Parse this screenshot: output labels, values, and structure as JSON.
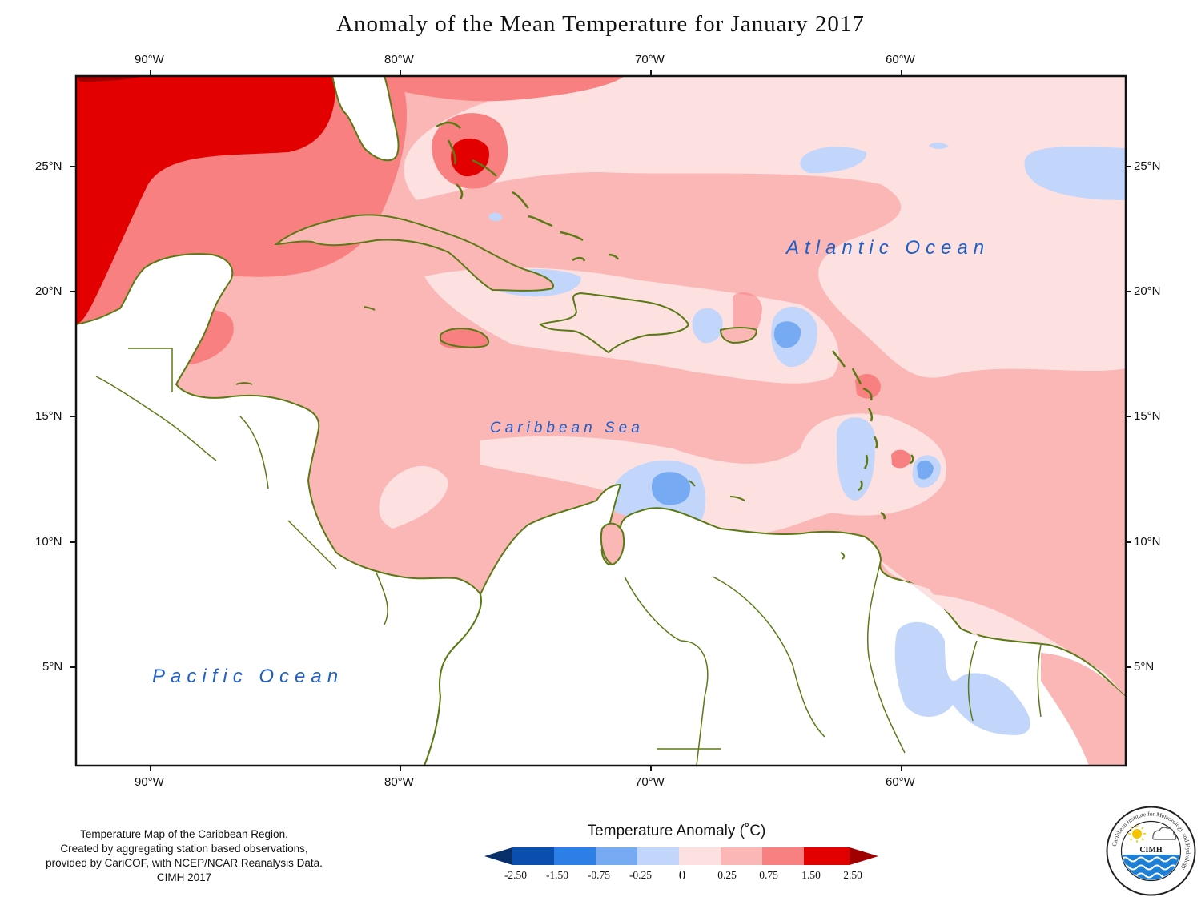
{
  "title": "Anomaly of the Mean Temperature for January 2017",
  "axes": {
    "top_lon": [
      "90°W",
      "80°W",
      "70°W",
      "60°W"
    ],
    "bottom_lon": [
      "90°W",
      "80°W",
      "70°W",
      "60°W"
    ],
    "left_lat": [
      "25°N",
      "20°N",
      "15°N",
      "10°N",
      "5°N"
    ],
    "right_lat": [
      "25°N",
      "20°N",
      "15°N",
      "10°N",
      "5°N"
    ]
  },
  "labels": {
    "atlantic": "Atlantic Ocean",
    "caribbean": "Caribbean Sea",
    "pacific": "Pacific Ocean"
  },
  "credit": {
    "line1": "Temperature Map of the Caribbean Region.",
    "line2": "Created by aggregating station based observations,",
    "line3": "provided by CariCOF, with NCEP/NCAR Reanalysis Data.",
    "line4": "CIMH 2017"
  },
  "legend": {
    "title": "Temperature Anomaly (˚C)",
    "ticks": [
      "-2.50",
      "-1.50",
      "-0.75",
      "-0.25",
      "0",
      "0.25",
      "0.75",
      "1.50",
      "2.50"
    ],
    "colors": [
      "#08306b",
      "#0a4fb0",
      "#2b7fe6",
      "#76aaf2",
      "#c2d6fb",
      "#fde0e0",
      "#fbb6b6",
      "#f98080",
      "#e30000",
      "#a00000"
    ]
  },
  "logo": {
    "name": "CIMH",
    "ring_text": "Caribbean Institute for Meteorology and Hydrology"
  },
  "colors": {
    "coast": "#5a7a14",
    "land": "#ffffff",
    "frame": "#111111"
  }
}
